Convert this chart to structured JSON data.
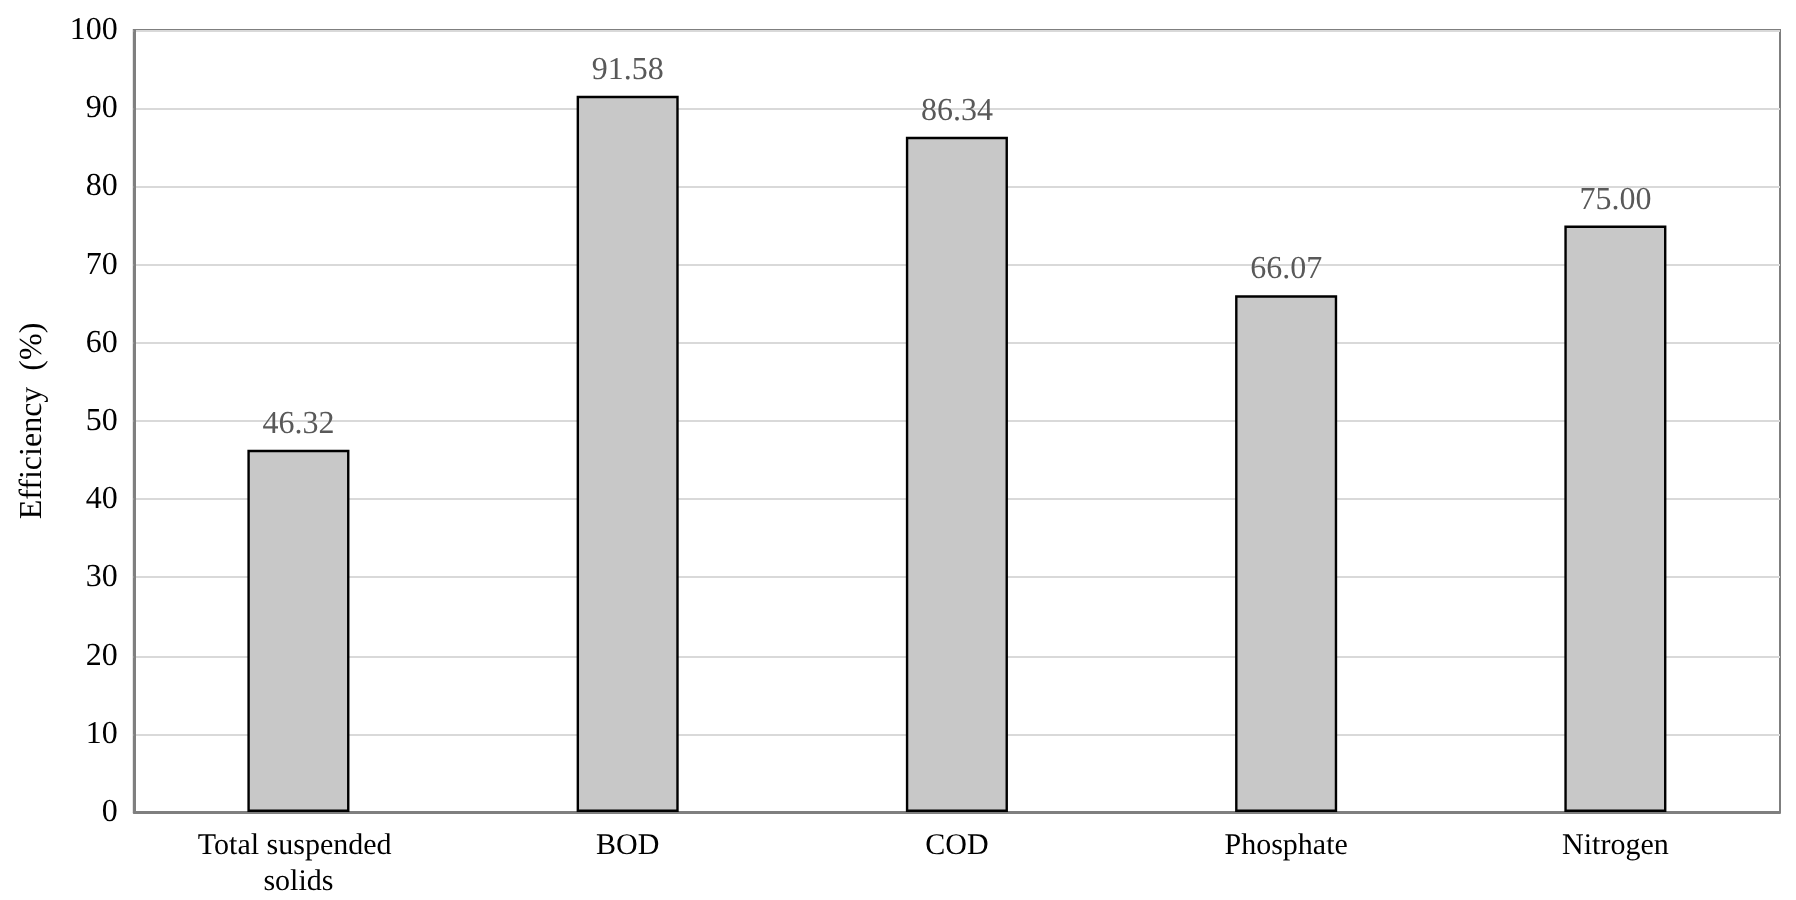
{
  "chart_data": {
    "type": "bar",
    "ylabel": "Efficiency  (%)",
    "categories": [
      "Total suspended solids",
      "BOD",
      "COD",
      "Phosphate",
      "Nitrogen"
    ],
    "values": [
      46.32,
      91.58,
      86.34,
      66.07,
      75.0
    ],
    "value_labels": [
      "46.32",
      "91.58",
      "86.34",
      "66.07",
      "75.00"
    ],
    "color": "#c8c8c8",
    "ylim": [
      0,
      100
    ],
    "yticks": [
      0,
      10,
      20,
      30,
      40,
      50,
      60,
      70,
      80,
      90,
      100
    ],
    "grid": "y"
  }
}
